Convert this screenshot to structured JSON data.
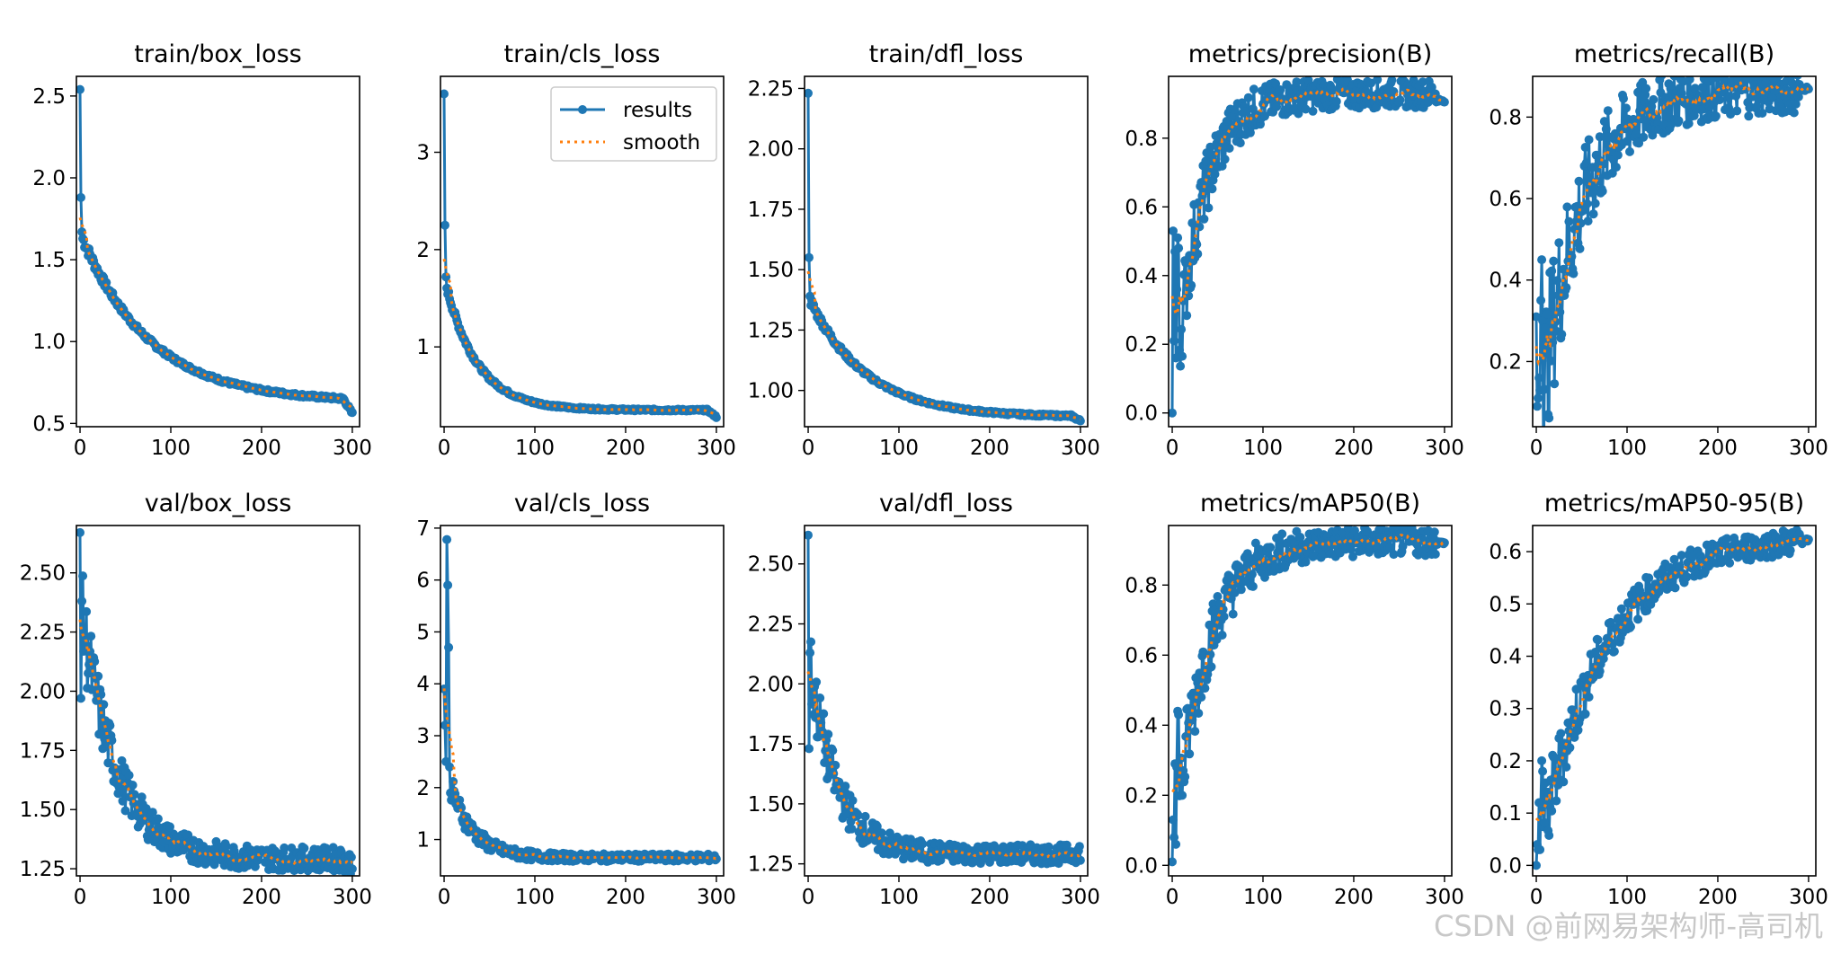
{
  "colors": {
    "results": "#1f77b4",
    "smooth": "#ff7f0e"
  },
  "watermark": "CSDN @前网易架构师-高司机",
  "chart_data": [
    {
      "title": "train/box_loss",
      "type": "line",
      "xlim": [
        -4,
        308
      ],
      "ylim": [
        0.48,
        2.62
      ],
      "xticks": [
        0,
        100,
        200,
        300
      ],
      "xtick_labels": [
        "0",
        "100",
        "200",
        "300"
      ],
      "yticks": [
        0.5,
        1.0,
        1.5,
        2.0,
        2.5
      ],
      "ytick_labels": [
        "0.5",
        "1.0",
        "1.5",
        "2.0",
        "2.5"
      ],
      "legend": null,
      "shape": {
        "kind": "decay",
        "start": 2.54,
        "k2": 1.88,
        "k3": 1.67,
        "mid": 1.1,
        "mid_at": 60,
        "end": 0.63,
        "tail": 0.54,
        "noise": 0.01
      }
    },
    {
      "title": "train/cls_loss",
      "type": "line",
      "xlim": [
        -4,
        308
      ],
      "ylim": [
        0.18,
        3.78
      ],
      "xticks": [
        0,
        100,
        200,
        300
      ],
      "xtick_labels": [
        "0",
        "100",
        "200",
        "300"
      ],
      "yticks": [
        1,
        2,
        3
      ],
      "ytick_labels": [
        "1",
        "2",
        "3"
      ],
      "legend": {
        "position": "upper right",
        "entries": [
          "results",
          "smooth"
        ]
      },
      "shape": {
        "kind": "decay",
        "start": 3.6,
        "k2": 2.25,
        "k3": 1.72,
        "mid": 0.68,
        "mid_at": 50,
        "end": 0.35,
        "tail": 0.28,
        "noise": 0.01
      }
    },
    {
      "title": "train/dfl_loss",
      "type": "line",
      "xlim": [
        -4,
        308
      ],
      "ylim": [
        0.85,
        2.3
      ],
      "xticks": [
        0,
        100,
        200,
        300
      ],
      "xtick_labels": [
        "0",
        "100",
        "200",
        "300"
      ],
      "yticks": [
        1.0,
        1.25,
        1.5,
        1.75,
        2.0,
        2.25
      ],
      "ytick_labels": [
        "1.00",
        "1.25",
        "1.50",
        "1.75",
        "2.00",
        "2.25"
      ],
      "legend": null,
      "shape": {
        "kind": "decay",
        "start": 2.23,
        "k2": 1.55,
        "k3": 1.39,
        "mid": 1.08,
        "mid_at": 60,
        "end": 0.89,
        "tail": 0.87,
        "noise": 0.005
      }
    },
    {
      "title": "metrics/precision(B)",
      "type": "line",
      "xlim": [
        -4,
        308
      ],
      "ylim": [
        -0.04,
        0.98
      ],
      "xticks": [
        0,
        100,
        200,
        300
      ],
      "xtick_labels": [
        "0",
        "100",
        "200",
        "300"
      ],
      "yticks": [
        0.0,
        0.2,
        0.4,
        0.6,
        0.8
      ],
      "ytick_labels": [
        "0.0",
        "0.2",
        "0.4",
        "0.6",
        "0.8"
      ],
      "legend": null,
      "shape": {
        "kind": "grow",
        "start": 0.0,
        "early": [
          0.0,
          0.53,
          0.21,
          0.47,
          0.16,
          0.36,
          0.51,
          0.48
        ],
        "plateau": 0.93,
        "rate": 30,
        "noise": 0.04,
        "tail": 0.91
      }
    },
    {
      "title": "metrics/recall(B)",
      "type": "line",
      "xlim": [
        -4,
        308
      ],
      "ylim": [
        0.04,
        0.9
      ],
      "xticks": [
        0,
        100,
        200,
        300
      ],
      "xtick_labels": [
        "0",
        "100",
        "200",
        "300"
      ],
      "yticks": [
        0.2,
        0.4,
        0.6,
        0.8
      ],
      "ytick_labels": [
        "0.2",
        "0.4",
        "0.6",
        "0.8"
      ],
      "legend": null,
      "shape": {
        "kind": "grow",
        "start": 0.31,
        "early": [
          0.31,
          0.09,
          0.11,
          0.16,
          0.13,
          0.35,
          0.45,
          0.3
        ],
        "plateau": 0.87,
        "rate": 45,
        "noise": 0.06,
        "tail": 0.87
      }
    },
    {
      "title": "val/box_loss",
      "type": "line",
      "xlim": [
        -4,
        308
      ],
      "ylim": [
        1.22,
        2.7
      ],
      "xticks": [
        0,
        100,
        200,
        300
      ],
      "xtick_labels": [
        "0",
        "100",
        "200",
        "300"
      ],
      "yticks": [
        1.25,
        1.5,
        1.75,
        2.0,
        2.25,
        2.5
      ],
      "ytick_labels": [
        "1.25",
        "1.50",
        "1.75",
        "2.00",
        "2.25",
        "2.50"
      ],
      "legend": null,
      "shape": {
        "kind": "decay",
        "start": 2.67,
        "k2": 1.97,
        "k3": 2.38,
        "mid": 1.52,
        "mid_at": 60,
        "end": 1.29,
        "tail": 1.27,
        "noise": 0.05
      }
    },
    {
      "title": "val/cls_loss",
      "type": "line",
      "xlim": [
        -4,
        308
      ],
      "ylim": [
        0.3,
        7.05
      ],
      "xticks": [
        0,
        100,
        200,
        300
      ],
      "xtick_labels": [
        "0",
        "100",
        "200",
        "300"
      ],
      "yticks": [
        1,
        2,
        3,
        4,
        5,
        6,
        7
      ],
      "ytick_labels": [
        "1",
        "2",
        "3",
        "4",
        "5",
        "6",
        "7"
      ],
      "legend": null,
      "shape": {
        "kind": "decay",
        "start": 3.9,
        "k2": 3.2,
        "k3": 2.5,
        "early": [
          3.9,
          3.2,
          2.5,
          6.78,
          5.9,
          4.7,
          2.4,
          1.9
        ],
        "mid": 0.9,
        "mid_at": 50,
        "end": 0.65,
        "tail": 0.65,
        "noise": 0.07
      }
    },
    {
      "title": "val/dfl_loss",
      "type": "line",
      "xlim": [
        -4,
        308
      ],
      "ylim": [
        1.2,
        2.66
      ],
      "xticks": [
        0,
        100,
        200,
        300
      ],
      "xtick_labels": [
        "0",
        "100",
        "200",
        "300"
      ],
      "yticks": [
        1.25,
        1.5,
        1.75,
        2.0,
        2.25,
        2.5
      ],
      "ytick_labels": [
        "1.25",
        "1.50",
        "1.75",
        "2.00",
        "2.25",
        "2.50"
      ],
      "legend": null,
      "shape": {
        "kind": "decay",
        "start": 2.62,
        "k2": 1.73,
        "k3": 2.13,
        "mid": 1.4,
        "mid_at": 60,
        "end": 1.29,
        "tail": 1.3,
        "noise": 0.04
      }
    },
    {
      "title": "metrics/mAP50(B)",
      "type": "line",
      "xlim": [
        -4,
        308
      ],
      "ylim": [
        -0.03,
        0.97
      ],
      "xticks": [
        0,
        100,
        200,
        300
      ],
      "xtick_labels": [
        "0",
        "100",
        "200",
        "300"
      ],
      "yticks": [
        0.0,
        0.2,
        0.4,
        0.6,
        0.8
      ],
      "ytick_labels": [
        "0.0",
        "0.2",
        "0.4",
        "0.6",
        "0.8"
      ],
      "legend": null,
      "shape": {
        "kind": "grow",
        "start": 0.01,
        "early": [
          0.01,
          0.13,
          0.08,
          0.29,
          0.06,
          0.28,
          0.44,
          0.43
        ],
        "plateau": 0.925,
        "rate": 35,
        "noise": 0.04,
        "tail": 0.92
      }
    },
    {
      "title": "metrics/mAP50-95(B)",
      "type": "line",
      "xlim": [
        -4,
        308
      ],
      "ylim": [
        -0.02,
        0.65
      ],
      "xticks": [
        0,
        100,
        200,
        300
      ],
      "xtick_labels": [
        "0",
        "100",
        "200",
        "300"
      ],
      "yticks": [
        0.0,
        0.1,
        0.2,
        0.3,
        0.4,
        0.5,
        0.6
      ],
      "ytick_labels": [
        "0.0",
        "0.1",
        "0.2",
        "0.3",
        "0.4",
        "0.5",
        "0.6"
      ],
      "legend": null,
      "shape": {
        "kind": "grow",
        "start": 0.0,
        "early": [
          0.0,
          0.04,
          0.03,
          0.12,
          0.03,
          0.12,
          0.2,
          0.18
        ],
        "plateau": 0.63,
        "rate": 70,
        "noise": 0.025,
        "tail": 0.62
      }
    }
  ],
  "legend_labels": {
    "results": "results",
    "smooth": "smooth"
  }
}
